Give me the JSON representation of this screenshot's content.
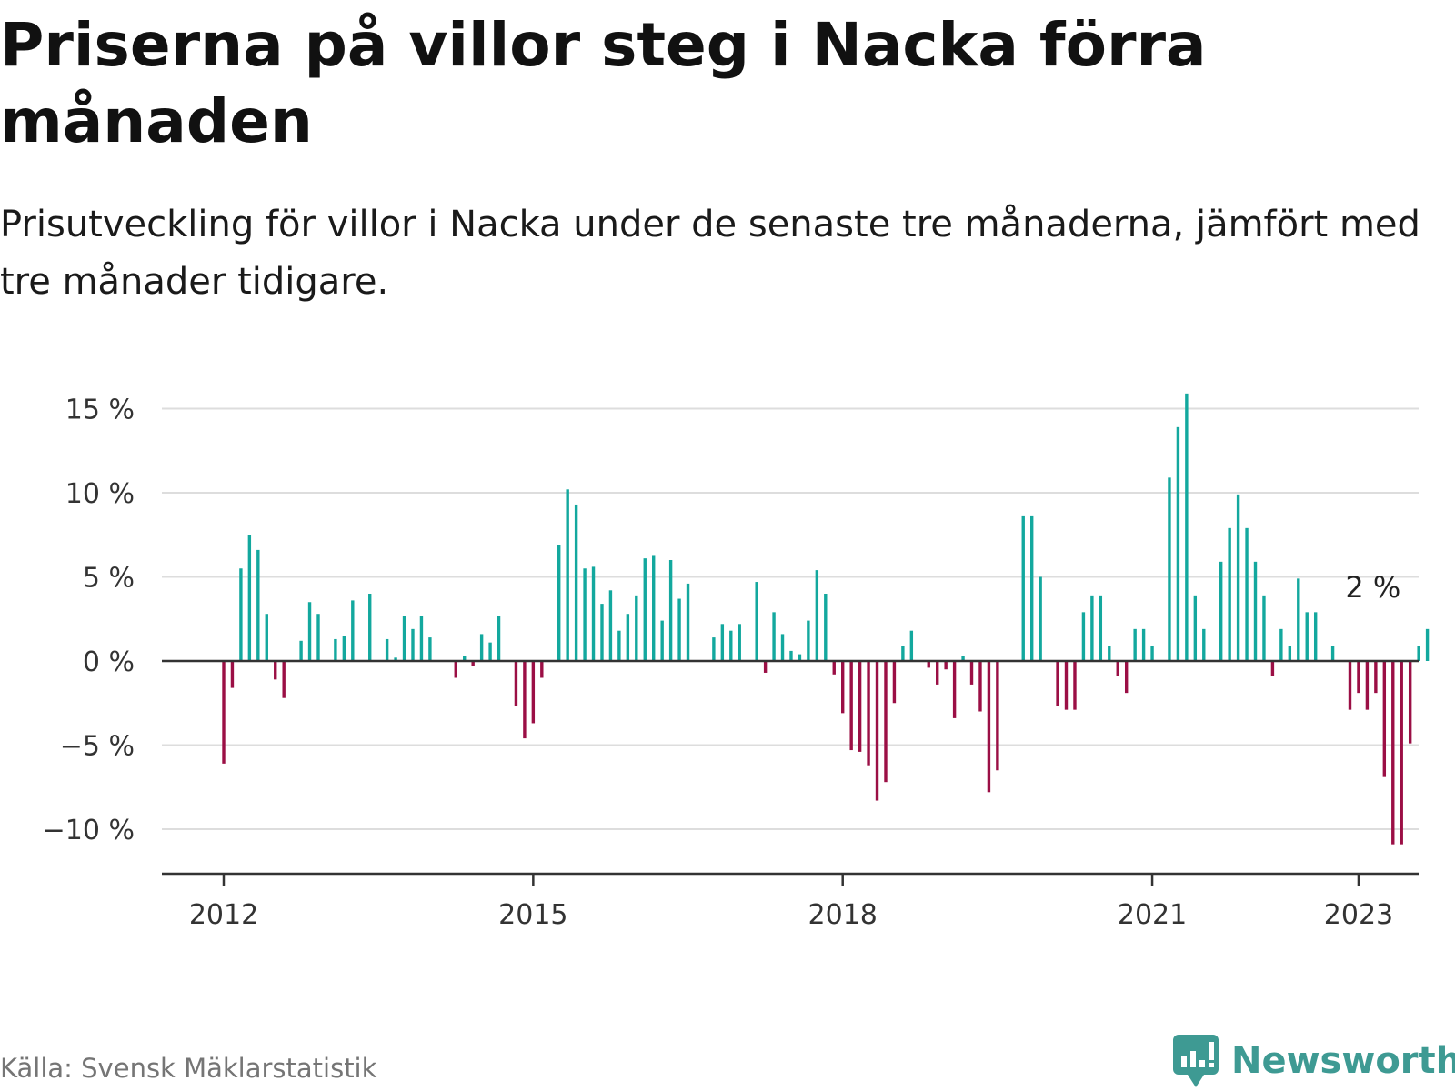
{
  "title": "Priserna på villor steg i Nacka förra månaden",
  "subtitle": "Prisutveckling för villor i Nacka under de senaste tre månaderna, jämfört med tre månader tidigare.",
  "source": "Källa: Svensk Mäklarstatistik",
  "brand": {
    "name": "Newsworthy",
    "icon": "newsworthy-logo-icon",
    "color": "#3e9a93"
  },
  "colors": {
    "positive": "#13a89e",
    "negative": "#9b0f45",
    "grid": "#dddddd",
    "zero_line": "#333333"
  },
  "chart_data": {
    "type": "bar",
    "title": "Priserna på villor steg i Nacka förra månaden",
    "subtitle": "Prisutveckling för villor i Nacka under de senaste tre månaderna, jämfört med tre månader tidigare.",
    "xlabel": "",
    "ylabel": "",
    "unit": "%",
    "grid": true,
    "legend": "none",
    "ylim": [
      -12.5,
      16
    ],
    "y_ticks": [
      15,
      10,
      5,
      0,
      -5,
      -10
    ],
    "y_tick_labels": [
      "15 %",
      "10 %",
      "5 %",
      "0 %",
      "−5 %",
      "−10 %"
    ],
    "x_ticks": [
      "2012-01",
      "2015-01",
      "2018-01",
      "2021-01",
      "2023-01"
    ],
    "x_tick_labels": [
      "2012",
      "2015",
      "2018",
      "2021",
      "2023"
    ],
    "annotation": {
      "x": "2023-03",
      "value": 2,
      "label": "2 %"
    },
    "start_month": "2012-01",
    "series": [
      {
        "values": [
          -6.1,
          -1.6,
          5.5,
          7.5,
          6.6,
          2.8,
          -1.1,
          -2.2,
          0,
          1.2,
          3.5,
          2.8,
          0,
          1.3,
          1.5,
          3.6,
          0,
          4.0,
          0,
          1.3,
          0.2,
          2.7,
          1.9,
          2.7,
          1.4,
          0,
          0,
          -1.0,
          0.3,
          -0.3,
          1.6,
          1.1,
          2.7,
          0,
          -2.7,
          -4.6,
          -3.7,
          -1.0,
          0,
          6.9,
          10.2,
          9.3,
          5.5,
          5.6,
          3.4,
          4.2,
          1.8,
          2.8,
          3.9,
          6.1,
          6.3,
          2.4,
          6.0,
          3.7,
          4.6,
          0,
          0,
          1.4,
          2.2,
          1.8,
          2.2,
          0,
          4.7,
          -0.7,
          2.9,
          1.6,
          0.6,
          0.4,
          2.4,
          5.4,
          4.0,
          -0.8,
          -3.1,
          -5.3,
          -5.4,
          -6.2,
          -8.3,
          -7.2,
          -2.5,
          0.9,
          1.8,
          0,
          -0.4,
          -1.4,
          -0.5,
          -3.4,
          0.3,
          -1.4,
          -3.0,
          -7.8,
          -6.5,
          0,
          0,
          8.6,
          8.6,
          5.0,
          0,
          -2.7,
          -2.9,
          -2.9,
          2.9,
          3.9,
          3.9,
          0.9,
          -0.9,
          -1.9,
          1.9,
          1.9,
          0.9,
          0,
          10.9,
          13.9,
          15.9,
          3.9,
          1.9,
          0,
          5.9,
          7.9,
          9.9,
          7.9,
          5.9,
          3.9,
          -0.9,
          1.9,
          0.9,
          4.9,
          2.9,
          2.9,
          0,
          0.9,
          0,
          -2.9,
          -1.9,
          -2.9,
          -1.9,
          -6.9,
          -10.9,
          -10.9,
          -4.9,
          0.9,
          1.9
        ]
      }
    ]
  }
}
